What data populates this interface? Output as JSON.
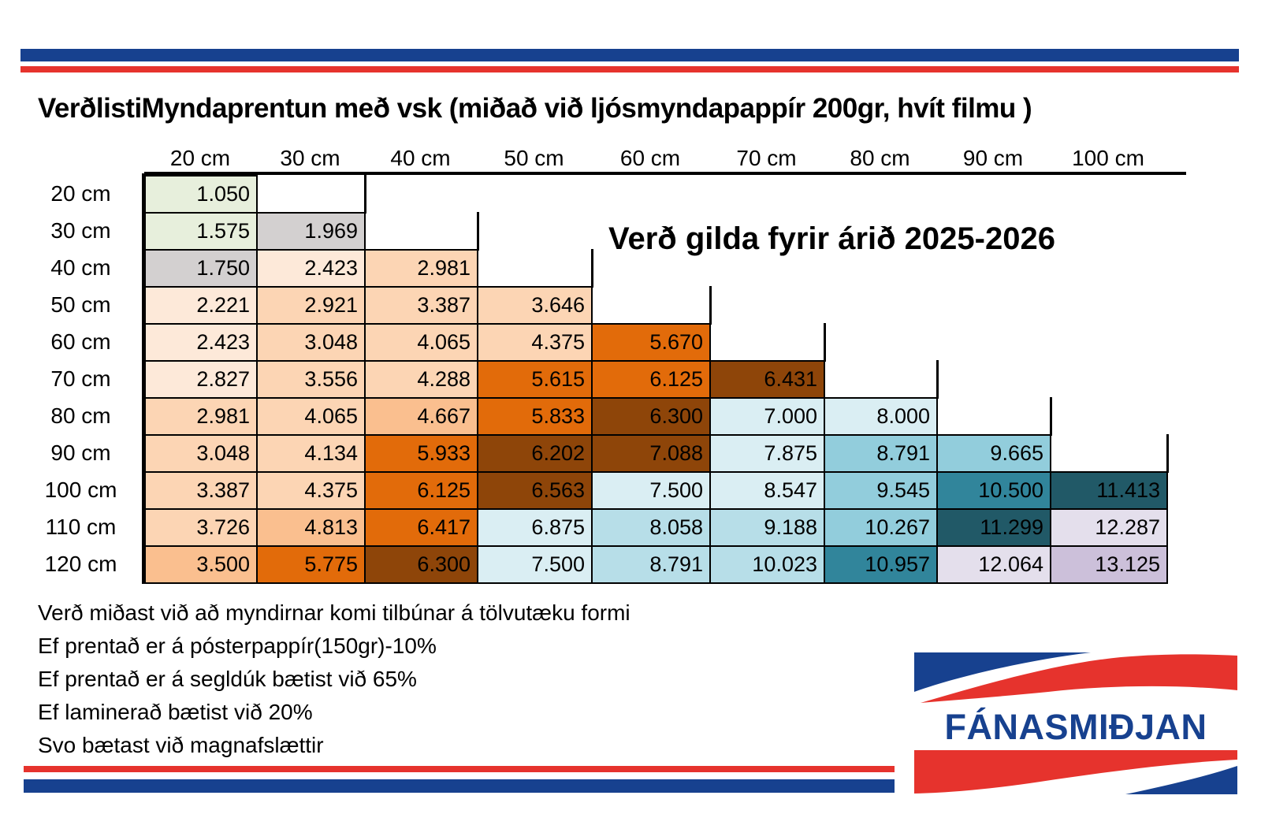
{
  "title": "VerðlistiMyndaprentun með vsk  (miðað við ljósmyndapappír 200gr, hvít filmu )",
  "validity": "Verð gilda fyrir árið 2025-2026",
  "table": {
    "column_headers": [
      "20 cm",
      "30 cm",
      "40 cm",
      "50 cm",
      "60 cm",
      "70 cm",
      "80 cm",
      "90 cm",
      "100 cm"
    ],
    "rows": [
      {
        "label": "20 cm",
        "cells": [
          {
            "value": "1.050",
            "color": "green"
          }
        ]
      },
      {
        "label": "30 cm",
        "cells": [
          {
            "value": "1.575",
            "color": "green"
          },
          {
            "value": "1.969",
            "color": "gray"
          }
        ]
      },
      {
        "label": "40 cm",
        "cells": [
          {
            "value": "1.750",
            "color": "gray"
          },
          {
            "value": "2.423",
            "color": "peach1"
          },
          {
            "value": "2.981",
            "color": "peach2"
          }
        ]
      },
      {
        "label": "50 cm",
        "cells": [
          {
            "value": "2.221",
            "color": "peach1"
          },
          {
            "value": "2.921",
            "color": "peach2"
          },
          {
            "value": "3.387",
            "color": "peach2"
          },
          {
            "value": "3.646",
            "color": "peach2"
          }
        ]
      },
      {
        "label": "60 cm",
        "cells": [
          {
            "value": "2.423",
            "color": "peach1"
          },
          {
            "value": "3.048",
            "color": "peach2"
          },
          {
            "value": "4.065",
            "color": "peach2"
          },
          {
            "value": "4.375",
            "color": "peach2"
          },
          {
            "value": "5.670",
            "color": "orange"
          }
        ]
      },
      {
        "label": "70 cm",
        "cells": [
          {
            "value": "2.827",
            "color": "peach1"
          },
          {
            "value": "3.556",
            "color": "peach2"
          },
          {
            "value": "4.288",
            "color": "peach2"
          },
          {
            "value": "5.615",
            "color": "orange"
          },
          {
            "value": "6.125",
            "color": "orange"
          },
          {
            "value": "6.431",
            "color": "brown"
          }
        ]
      },
      {
        "label": "80 cm",
        "cells": [
          {
            "value": "2.981",
            "color": "peach2"
          },
          {
            "value": "4.065",
            "color": "peach2"
          },
          {
            "value": "4.667",
            "color": "peach3"
          },
          {
            "value": "5.833",
            "color": "orange"
          },
          {
            "value": "6.300",
            "color": "brown"
          },
          {
            "value": "7.000",
            "color": "blue1"
          },
          {
            "value": "8.000",
            "color": "blue1"
          }
        ]
      },
      {
        "label": "90 cm",
        "cells": [
          {
            "value": "3.048",
            "color": "peach2"
          },
          {
            "value": "4.134",
            "color": "peach2"
          },
          {
            "value": "5.933",
            "color": "orange"
          },
          {
            "value": "6.202",
            "color": "brown"
          },
          {
            "value": "7.088",
            "color": "brown"
          },
          {
            "value": "7.875",
            "color": "blue1"
          },
          {
            "value": "8.791",
            "color": "blue3"
          },
          {
            "value": "9.665",
            "color": "blue3"
          }
        ]
      },
      {
        "label": "100 cm",
        "cells": [
          {
            "value": "3.387",
            "color": "peach2"
          },
          {
            "value": "4.375",
            "color": "peach2"
          },
          {
            "value": "6.125",
            "color": "orange"
          },
          {
            "value": "6.563",
            "color": "brown"
          },
          {
            "value": "7.500",
            "color": "blue1"
          },
          {
            "value": "8.547",
            "color": "blue1"
          },
          {
            "value": "9.545",
            "color": "blue3"
          },
          {
            "value": "10.500",
            "color": "teal"
          },
          {
            "value": "11.413",
            "color": "tealDark"
          }
        ]
      },
      {
        "label": "110 cm",
        "cells": [
          {
            "value": "3.726",
            "color": "peach2"
          },
          {
            "value": "4.813",
            "color": "peach3"
          },
          {
            "value": "6.417",
            "color": "orange"
          },
          {
            "value": "6.875",
            "color": "blue1"
          },
          {
            "value": "8.058",
            "color": "blue2"
          },
          {
            "value": "9.188",
            "color": "blue2"
          },
          {
            "value": "10.267",
            "color": "blue3"
          },
          {
            "value": "11.299",
            "color": "tealDark"
          },
          {
            "value": "12.287",
            "color": "lav1"
          }
        ]
      },
      {
        "label": "120 cm",
        "cells": [
          {
            "value": "3.500",
            "color": "peach3"
          },
          {
            "value": "5.775",
            "color": "orange"
          },
          {
            "value": "6.300",
            "color": "brown"
          },
          {
            "value": "7.500",
            "color": "blue1"
          },
          {
            "value": "8.791",
            "color": "blue2"
          },
          {
            "value": "10.023",
            "color": "blue2"
          },
          {
            "value": "10.957",
            "color": "teal"
          },
          {
            "value": "12.064",
            "color": "lav1"
          },
          {
            "value": "13.125",
            "color": "lav2"
          }
        ]
      }
    ]
  },
  "notes": [
    "Verð miðast við að myndirnar komi tilbúnar á tölvutæku formi",
    "Ef prentað er á pósterpappír(150gr)-10%",
    "Ef prentað er á segldúk bætist við 65%",
    "Ef laminerað bætist við 20%",
    "Svo bætast við magnafslættir"
  ],
  "logo": {
    "name": "FÁNASMIÐJAN"
  },
  "palette": {
    "green": "#e7efdc",
    "gray": "#d3d0d0",
    "peach1": "#fde9d9",
    "peach2": "#fcd5b4",
    "peach3": "#fabf8f",
    "orange": "#e26b0a",
    "brown": "#8e4509",
    "blue1": "#daeef3",
    "blue2": "#b7dee8",
    "blue3": "#92cddc",
    "teal": "#31859b",
    "tealDark": "#215967",
    "lav1": "#e4dfec",
    "lav2": "#ccc0da",
    "stripeBlue": "#17418f",
    "stripeRed": "#e6332d",
    "logoBlue": "#17418f",
    "logoRed": "#e6332d"
  }
}
